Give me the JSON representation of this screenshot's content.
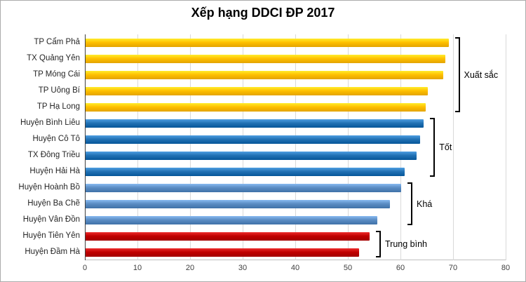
{
  "chart_data": {
    "type": "bar",
    "orientation": "horizontal",
    "title": "Xếp hạng DDCI ĐP 2017",
    "categories": [
      "TP Cẩm Phả",
      "TX Quảng Yên",
      "TP Móng Cái",
      "TP Uông Bí",
      "TP Hạ Long",
      "Huyện Bình Liêu",
      "Huyện Cô Tô",
      "TX Đông Triều",
      "Huyện Hải Hà",
      "Huyện Hoành Bồ",
      "Huyện Ba Chẽ",
      "Huyện Vân Đồn",
      "Huyện Tiên Yên",
      "Huyện Đầm Hà"
    ],
    "values": [
      69,
      68.4,
      68,
      65,
      64.6,
      64.3,
      63.6,
      62.9,
      60.7,
      60,
      57.8,
      55.4,
      54,
      52
    ],
    "xlabel": "",
    "ylabel": "",
    "xlim": [
      0,
      80
    ],
    "x_ticks": [
      0,
      10,
      20,
      30,
      40,
      50,
      60,
      70,
      80
    ],
    "grid": true,
    "legend_position": "none",
    "groups": [
      {
        "label": "Xuất sắc",
        "start": 0,
        "end": 4,
        "color": "#FFC000"
      },
      {
        "label": "Tốt",
        "start": 5,
        "end": 8,
        "color": "#2272B5"
      },
      {
        "label": "Khá",
        "start": 9,
        "end": 11,
        "color": "#5B8DC4"
      },
      {
        "label": "Trung bình",
        "start": 12,
        "end": 13,
        "color": "#C00000"
      }
    ],
    "bracket_color": "#000000",
    "gridline_color": "#D9D9D9",
    "axis_color": "#404040"
  }
}
